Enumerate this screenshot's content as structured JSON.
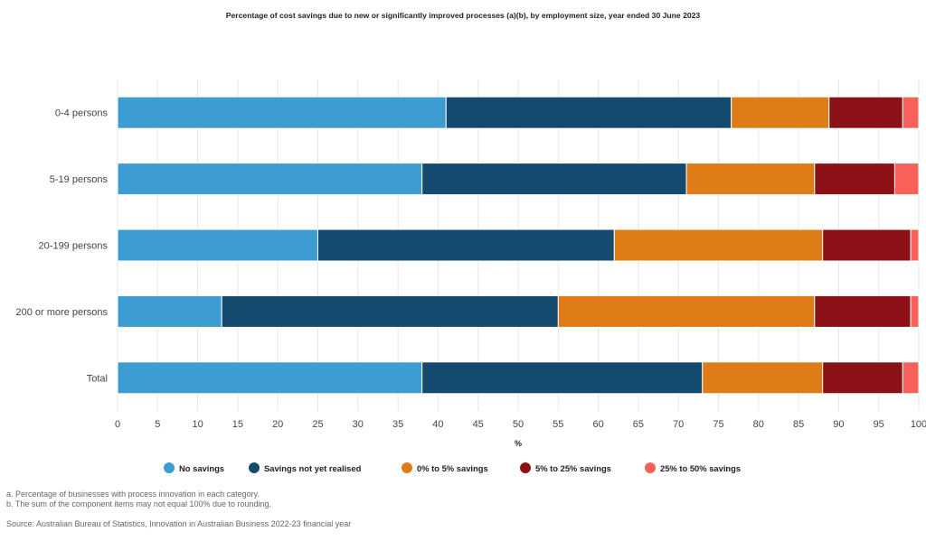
{
  "title": "Percentage of cost savings due to new or significantly improved processes (a)(b), by employment size, year ended 30 June 2023",
  "chart_data": {
    "type": "bar",
    "orientation": "horizontal",
    "stacked": true,
    "categories": [
      "0-4 persons",
      "5-19 persons",
      "20-199 persons",
      "200 or more persons",
      "Total"
    ],
    "series": [
      {
        "name": "No savings",
        "color": "#3d9dd3",
        "values": [
          41,
          38,
          25,
          13,
          38
        ]
      },
      {
        "name": "Savings not yet realised",
        "color": "#154a6f",
        "values": [
          35.6,
          33,
          37,
          42,
          35
        ]
      },
      {
        "name": "0% to 5% savings",
        "color": "#df7c18",
        "values": [
          12.2,
          16,
          26,
          32,
          15
        ]
      },
      {
        "name": "5% to 25% savings",
        "color": "#8b1117",
        "values": [
          9.2,
          10,
          11,
          12,
          10
        ]
      },
      {
        "name": "25% to 50% savings",
        "color": "#f8605a",
        "values": [
          2,
          3,
          1,
          1,
          2
        ]
      }
    ],
    "xlabel": "%",
    "xlim": [
      0,
      100
    ],
    "xticks": [
      0,
      5,
      10,
      15,
      20,
      25,
      30,
      35,
      40,
      45,
      50,
      55,
      60,
      65,
      70,
      75,
      80,
      85,
      90,
      95,
      100
    ],
    "grid": true,
    "legend_position": "bottom"
  },
  "notes": [
    "a. Percentage of businesses with process innovation in each category.",
    "b. The sum of the component items may not equal 100% due to rounding."
  ],
  "source": "Source: Australian Bureau of Statistics, Innovation in Australian Business 2022-23 financial year"
}
